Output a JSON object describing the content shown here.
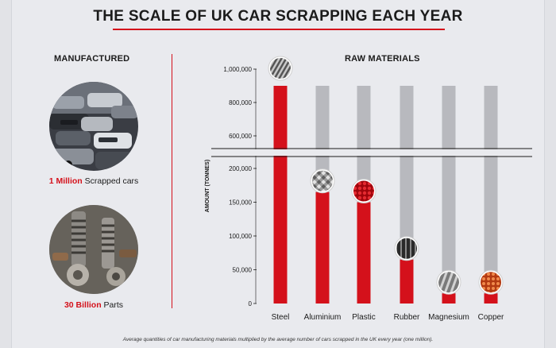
{
  "title": "THE SCALE OF UK CAR SCRAPPING EACH YEAR",
  "manufactured": {
    "heading": "MANUFACTURED",
    "cars": {
      "highlight": "1 Million",
      "text": " Scrapped cars"
    },
    "parts": {
      "highlight": "30 Billion",
      "text": " Parts"
    }
  },
  "footnote": "Average quantities of car manufacturing materials multiplied by the average number of cars scrapped in the UK every year (one million).",
  "colors": {
    "accent": "#d4111b",
    "track": "#b8b9be",
    "text": "#1b1b1b"
  },
  "chart_data": {
    "type": "bar",
    "title": "RAW MATERIALS",
    "xlabel": "",
    "ylabel": "AMOUNT (TONNES)",
    "axis_break": {
      "lower_range": [
        0,
        200000
      ],
      "upper_range": [
        600000,
        1000000
      ]
    },
    "ticks": [
      {
        "value": 0,
        "label": "0"
      },
      {
        "value": 50000,
        "label": "50,000"
      },
      {
        "value": 100000,
        "label": "100,000"
      },
      {
        "value": 150000,
        "label": "150,000"
      },
      {
        "value": 200000,
        "label": "200,000"
      },
      {
        "value": 600000,
        "label": "600,000"
      },
      {
        "value": 800000,
        "label": "800,000"
      },
      {
        "value": 1000000,
        "label": "1,000,000"
      }
    ],
    "categories": [
      "Steel",
      "Aluminium",
      "Plastic",
      "Rubber",
      "Magnesium",
      "Copper"
    ],
    "values": [
      900000,
      165000,
      150000,
      65000,
      15000,
      15000
    ],
    "track_value": 900000,
    "material_icons": [
      "steel-icon",
      "aluminium-icon",
      "plastic-icon",
      "rubber-icon",
      "magnesium-icon",
      "copper-icon"
    ]
  }
}
